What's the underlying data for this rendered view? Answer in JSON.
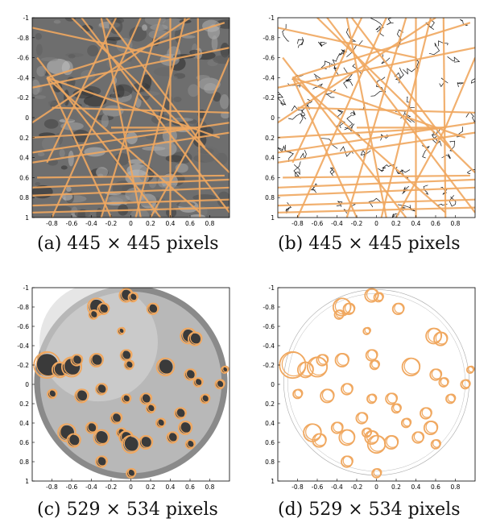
{
  "panels": [
    {
      "id": "a",
      "caption": "(a) 445 × 445 pixels",
      "kind": "line-detection",
      "background": "grayscale-texture"
    },
    {
      "id": "b",
      "caption": "(b) 445 × 445 pixels",
      "kind": "line-detection",
      "background": "edge-map"
    },
    {
      "id": "c",
      "caption": "(c) 529 × 534 pixels",
      "kind": "circle-detection",
      "background": "petri-dish-photo"
    },
    {
      "id": "d",
      "caption": "(d) 529 × 534 pixels",
      "kind": "circle-detection",
      "background": "edge-map"
    }
  ],
  "axes": {
    "y_ticks": [
      "-1",
      "-0.8",
      "-0.6",
      "-0.4",
      "-0.2",
      "0",
      "0.2",
      "0.4",
      "0.6",
      "0.8",
      "1"
    ],
    "x_ticks": [
      "-0.8",
      "-0.6",
      "-0.4",
      "-0.2",
      "0",
      "0.2",
      "0.4",
      "0.6",
      "0.8"
    ],
    "x_values": [
      -0.8,
      -0.6,
      -0.4,
      -0.2,
      0,
      0.2,
      0.4,
      0.6,
      0.8
    ],
    "y_values": [
      -1,
      -0.8,
      -0.6,
      -0.4,
      -0.2,
      0,
      0.2,
      0.4,
      0.6,
      0.8,
      1
    ],
    "range": [
      -1,
      1
    ]
  },
  "colors": {
    "overlay": "#f0a860",
    "frame": "#000000",
    "photo_dark": "#3a3a3a",
    "photo_light": "#b8b8b8"
  },
  "lines": [
    [
      [
        -0.85,
        -0.4
      ],
      [
        0.95,
        -0.95
      ]
    ],
    [
      [
        -0.85,
        -0.4
      ],
      [
        0.7,
        0.95
      ]
    ],
    [
      [
        -0.85,
        -0.4
      ],
      [
        -0.2,
        1.0
      ]
    ],
    [
      [
        -0.85,
        -0.4
      ],
      [
        0.9,
        0.2
      ]
    ],
    [
      [
        -0.95,
        -0.6
      ],
      [
        0.3,
        1.0
      ]
    ],
    [
      [
        -1.0,
        -0.3
      ],
      [
        1.0,
        -0.7
      ]
    ],
    [
      [
        -1.0,
        0.35
      ],
      [
        1.0,
        0.05
      ]
    ],
    [
      [
        -1.0,
        0.45
      ],
      [
        1.0,
        0.15
      ]
    ],
    [
      [
        -1.0,
        0.7
      ],
      [
        1.0,
        0.62
      ]
    ],
    [
      [
        -1.0,
        0.78
      ],
      [
        1.0,
        0.7
      ]
    ],
    [
      [
        -1.0,
        0.88
      ],
      [
        1.0,
        0.82
      ]
    ],
    [
      [
        -1.0,
        0.95
      ],
      [
        1.0,
        0.9
      ]
    ],
    [
      [
        -0.3,
        -1.0
      ],
      [
        0.1,
        1.0
      ]
    ],
    [
      [
        -0.25,
        -1.0
      ],
      [
        0.75,
        0.3
      ]
    ],
    [
      [
        -0.2,
        0.1
      ],
      [
        0.7,
        0.1
      ]
    ],
    [
      [
        0.4,
        -1.0
      ],
      [
        0.4,
        1.0
      ]
    ],
    [
      [
        0.68,
        -1.0
      ],
      [
        0.7,
        1.0
      ]
    ],
    [
      [
        0.7,
        0.1
      ],
      [
        -1.0,
        0.2
      ]
    ],
    [
      [
        0.7,
        0.1
      ],
      [
        0.2,
        1.0
      ]
    ],
    [
      [
        0.7,
        0.1
      ],
      [
        1.0,
        -0.6
      ]
    ],
    [
      [
        -0.6,
        -1.0
      ],
      [
        1.0,
        0.55
      ]
    ],
    [
      [
        -1.0,
        -0.9
      ],
      [
        0.4,
        -0.6
      ]
    ],
    [
      [
        0.1,
        -1.0
      ],
      [
        -0.8,
        1.0
      ]
    ],
    [
      [
        0.3,
        -1.0
      ],
      [
        -0.3,
        1.0
      ]
    ],
    [
      [
        0.55,
        -1.0
      ],
      [
        0.05,
        1.0
      ]
    ],
    [
      [
        -1.0,
        0.05
      ],
      [
        0.6,
        -1.0
      ]
    ],
    [
      [
        -0.95,
        0.6
      ],
      [
        0.95,
        0.58
      ]
    ],
    [
      [
        -0.5,
        -1.0
      ],
      [
        1.0,
        0.95
      ]
    ],
    [
      [
        -0.8,
        -0.1
      ],
      [
        1.0,
        -0.05
      ]
    ],
    [
      [
        -0.15,
        -1.0
      ],
      [
        -0.85,
        0.45
      ]
    ]
  ],
  "circles": [
    [
      -0.05,
      -0.92,
      0.06
    ],
    [
      0.02,
      -0.9,
      0.04
    ],
    [
      -0.35,
      -0.8,
      0.08
    ],
    [
      -0.28,
      -0.78,
      0.05
    ],
    [
      -0.38,
      -0.72,
      0.04
    ],
    [
      0.22,
      -0.78,
      0.05
    ],
    [
      0.58,
      -0.5,
      0.07
    ],
    [
      0.65,
      -0.47,
      0.06
    ],
    [
      -0.1,
      -0.55,
      0.03
    ],
    [
      -0.85,
      -0.2,
      0.12
    ],
    [
      -0.72,
      -0.15,
      0.07
    ],
    [
      -0.6,
      -0.18,
      0.09
    ],
    [
      -0.55,
      -0.25,
      0.05
    ],
    [
      -0.35,
      -0.25,
      0.06
    ],
    [
      -0.05,
      -0.3,
      0.05
    ],
    [
      -0.02,
      -0.2,
      0.04
    ],
    [
      0.35,
      -0.18,
      0.08
    ],
    [
      0.6,
      -0.1,
      0.05
    ],
    [
      0.68,
      -0.02,
      0.04
    ],
    [
      0.95,
      -0.15,
      0.03
    ],
    [
      0.9,
      0.0,
      0.04
    ],
    [
      -0.8,
      0.1,
      0.04
    ],
    [
      -0.5,
      0.12,
      0.06
    ],
    [
      -0.3,
      0.05,
      0.05
    ],
    [
      -0.05,
      0.15,
      0.04
    ],
    [
      0.15,
      0.15,
      0.05
    ],
    [
      0.2,
      0.25,
      0.04
    ],
    [
      -0.65,
      0.5,
      0.08
    ],
    [
      -0.58,
      0.58,
      0.06
    ],
    [
      -0.4,
      0.45,
      0.05
    ],
    [
      -0.3,
      0.55,
      0.07
    ],
    [
      -0.1,
      0.5,
      0.04
    ],
    [
      -0.05,
      0.55,
      0.06
    ],
    [
      0.0,
      0.62,
      0.08
    ],
    [
      0.15,
      0.6,
      0.06
    ],
    [
      0.3,
      0.4,
      0.04
    ],
    [
      0.42,
      0.55,
      0.05
    ],
    [
      0.6,
      0.62,
      0.04
    ],
    [
      -0.3,
      0.8,
      0.05
    ],
    [
      0.0,
      0.92,
      0.04
    ],
    [
      0.5,
      0.3,
      0.05
    ],
    [
      0.75,
      0.15,
      0.04
    ],
    [
      -0.15,
      0.35,
      0.05
    ],
    [
      0.55,
      0.45,
      0.06
    ]
  ]
}
